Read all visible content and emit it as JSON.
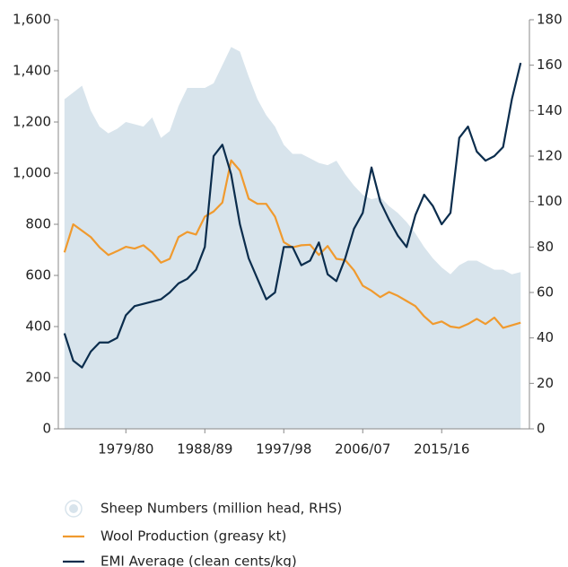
{
  "chart_data": {
    "type": "line",
    "x": [
      1972,
      1973,
      1974,
      1975,
      1976,
      1977,
      1978,
      1979,
      1980,
      1981,
      1982,
      1983,
      1984,
      1985,
      1986,
      1987,
      1988,
      1989,
      1990,
      1991,
      1992,
      1993,
      1994,
      1995,
      1996,
      1997,
      1998,
      1999,
      2000,
      2001,
      2002,
      2003,
      2004,
      2005,
      2006,
      2007,
      2008,
      2009,
      2010,
      2011,
      2012,
      2013,
      2014,
      2015,
      2016,
      2017,
      2018,
      2019,
      2020,
      2021,
      2022,
      2023,
      2024
    ],
    "xlim": [
      1971.3,
      2025
    ],
    "xticks": [
      {
        "value": 1979,
        "label": "1979/80"
      },
      {
        "value": 1988,
        "label": "1988/89"
      },
      {
        "value": 1997,
        "label": "1997/98"
      },
      {
        "value": 2006,
        "label": "2006/07"
      },
      {
        "value": 2015,
        "label": "2015/16"
      }
    ],
    "ylim": [
      0,
      1600
    ],
    "yticks": [
      0,
      200,
      400,
      600,
      800,
      {
        "value": 1000,
        "label": "1,000"
      },
      {
        "value": 1200,
        "label": "1,200"
      },
      {
        "value": 1400,
        "label": "1,400"
      },
      {
        "value": 1600,
        "label": "1,600"
      }
    ],
    "y2lim": [
      0,
      180
    ],
    "y2ticks": [
      0,
      20,
      40,
      60,
      80,
      100,
      120,
      140,
      160,
      180
    ],
    "series": [
      {
        "name": "Sheep Numbers (million head, RHS)",
        "kind": "area",
        "axis": "y2",
        "color": "#d8e4ec",
        "values": [
          145,
          148,
          151,
          140,
          133,
          130,
          132,
          135,
          134,
          133,
          137,
          128,
          131,
          142,
          150,
          150,
          150,
          152,
          160,
          168,
          166,
          155,
          145,
          138,
          133,
          125,
          121,
          121,
          119,
          117,
          116,
          118,
          112,
          107,
          103,
          101,
          102,
          98,
          95,
          91,
          86,
          80,
          75,
          71,
          68,
          72,
          74,
          74,
          72,
          70,
          70,
          68,
          69
        ]
      },
      {
        "name": "Wool Production (greasy kt)",
        "kind": "line",
        "color": "#f09a2e",
        "values": [
          690,
          800,
          775,
          750,
          710,
          680,
          695,
          712,
          705,
          718,
          690,
          650,
          665,
          750,
          770,
          760,
          830,
          850,
          885,
          1050,
          1010,
          900,
          880,
          880,
          830,
          730,
          710,
          718,
          720,
          680,
          715,
          665,
          660,
          620,
          560,
          540,
          515,
          535,
          520,
          500,
          480,
          440,
          410,
          420,
          400,
          395,
          410,
          430,
          410,
          435,
          395,
          405,
          415
        ]
      },
      {
        "name": "EMI Average (clean cents/kg)",
        "kind": "line",
        "axis": "y2",
        "color": "#0b2d4d",
        "values": [
          42,
          30,
          27,
          34,
          38,
          38,
          40,
          50,
          54,
          55,
          56,
          57,
          60,
          64,
          66,
          70,
          80,
          120,
          125,
          112,
          90,
          75,
          66,
          57,
          60,
          80,
          80,
          72,
          74,
          82,
          68,
          65,
          75,
          88,
          95,
          115,
          100,
          92,
          85,
          80,
          94,
          103,
          98,
          90,
          95,
          128,
          133,
          122,
          118,
          120,
          124,
          145,
          161
        ]
      }
    ]
  }
}
